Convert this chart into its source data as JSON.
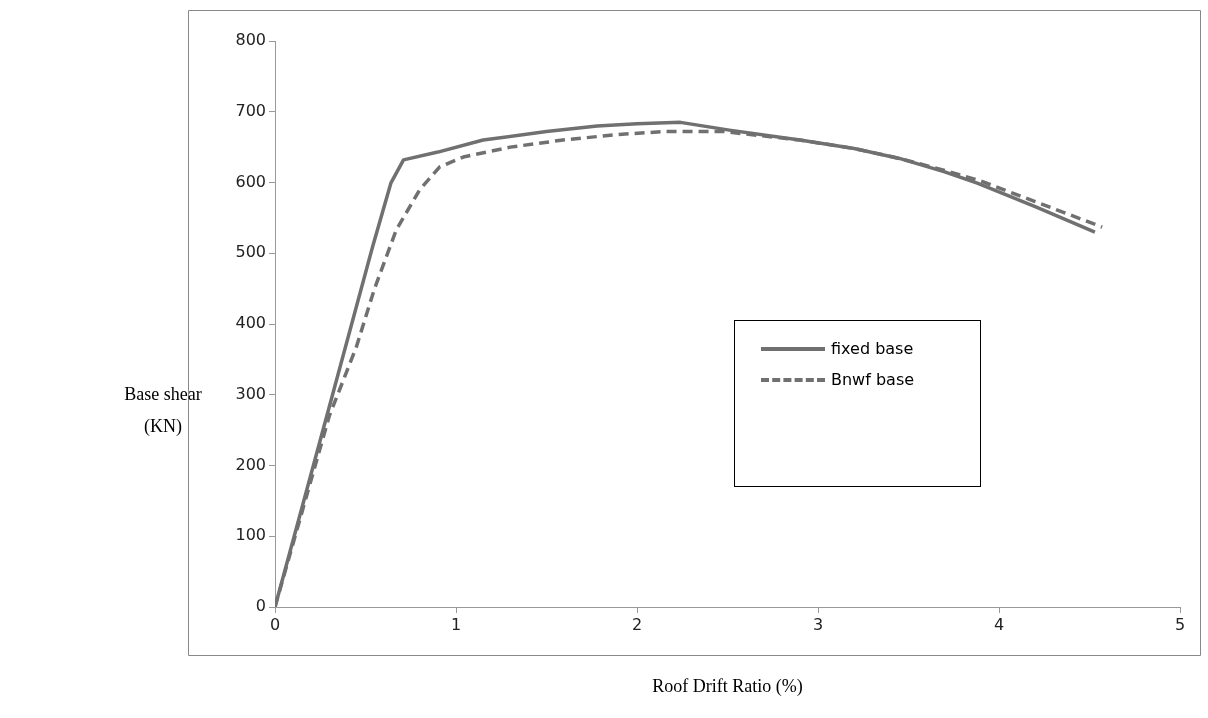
{
  "chart_data": {
    "type": "line",
    "xlabel": "Roof Drift Ratio (%)",
    "ylabel": "Base shear\n(KN)",
    "xlim": [
      0,
      5
    ],
    "xticks": [
      0,
      1,
      2,
      3,
      4,
      5
    ],
    "ylim": [
      0,
      800
    ],
    "yticks": [
      0,
      100,
      200,
      300,
      400,
      500,
      600,
      700,
      800
    ],
    "grid": false,
    "legend": "right",
    "marker": "none",
    "series": [
      {
        "name": "fixed base",
        "color": "#707070",
        "line_style": "solid",
        "x": [
          0,
          0.3,
          0.54,
          0.64,
          0.71,
          0.9,
          1.15,
          1.5,
          1.78,
          2.0,
          2.24,
          2.51,
          2.9,
          3.2,
          3.45,
          3.7,
          3.88,
          4.2,
          4.53
        ],
        "values": [
          0,
          283,
          510,
          599,
          632,
          643,
          660,
          672,
          680,
          683,
          685,
          674,
          660,
          648,
          634,
          615,
          599,
          566,
          530
        ]
      },
      {
        "name": "Bnwf base",
        "color": "#707070",
        "line_style": "dashed",
        "x": [
          0,
          0.3,
          0.45,
          0.55,
          0.67,
          0.8,
          0.91,
          1.04,
          1.3,
          1.59,
          1.9,
          2.15,
          2.48,
          2.9,
          3.2,
          3.45,
          3.7,
          3.9,
          4.2,
          4.57
        ],
        "values": [
          0,
          270,
          368,
          450,
          533,
          590,
          622,
          636,
          650,
          660,
          668,
          672,
          672,
          660,
          648,
          634,
          617,
          602,
          573,
          537
        ]
      }
    ]
  }
}
